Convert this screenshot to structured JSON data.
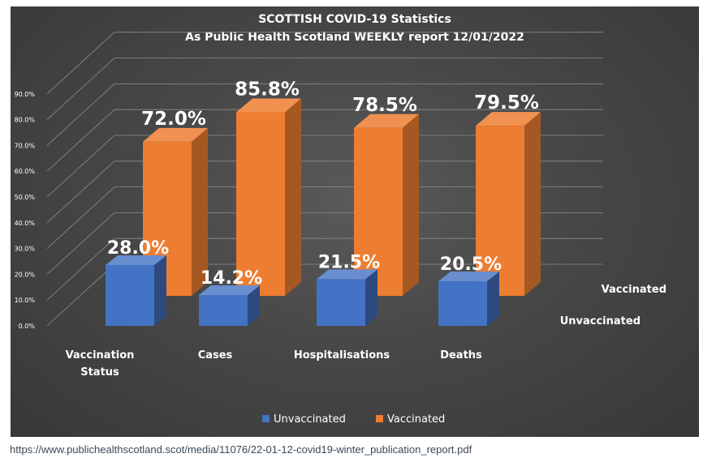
{
  "chart_data": {
    "type": "bar",
    "title": "SCOTTISH COVID-19 Statistics",
    "subtitle": "As Public Health Scotland WEEKLY report 12/01/2022",
    "categories": [
      "Vaccination Status",
      "Cases",
      "Hospitalisations",
      "Deaths"
    ],
    "series": [
      {
        "name": "Unvaccinated",
        "values": [
          28.0,
          14.2,
          21.5,
          20.5
        ],
        "labels": [
          "28.0%",
          "14.2%",
          "21.5%",
          "20.5%"
        ],
        "color": "#4472c4"
      },
      {
        "name": "Vaccinated",
        "values": [
          72.0,
          85.8,
          78.5,
          79.5
        ],
        "labels": [
          "72.0%",
          "85.8%",
          "78.5%",
          "79.5%"
        ],
        "color": "#ed7d31"
      }
    ],
    "y_ticks": [
      "0.0%",
      "10.0%",
      "20.0%",
      "30.0%",
      "40.0%",
      "50.0%",
      "60.0%",
      "70.0%",
      "80.0%",
      "90.0%"
    ],
    "ylim": [
      0,
      100
    ],
    "depth_labels": [
      "Vaccinated",
      "Unvaccinated"
    ],
    "legend_position": "bottom",
    "grid": true,
    "view": "3d-column"
  },
  "source_url": "https://www.publichealthscotland.scot/media/11076/22-01-12-covid19-winter_publication_report.pdf"
}
